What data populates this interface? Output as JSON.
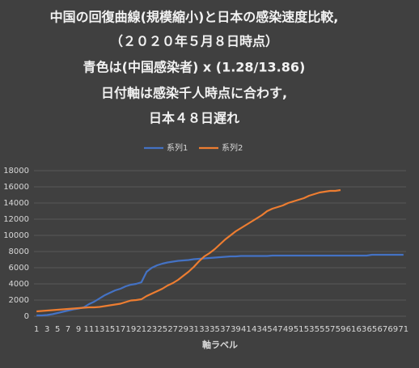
{
  "chart_data": {
    "type": "line",
    "title": [
      "中国の回復曲線(規模縮小)と日本の感染速度比較,",
      "（２０２０年５月８日時点）",
      "青色は(中国感染者) x (1.28/13.86)",
      "日付軸は感染千人時点に合わす,",
      "日本４８日遅れ"
    ],
    "xlabel": "軸ラベル",
    "categories": [
      1,
      null,
      3,
      null,
      5,
      null,
      7,
      null,
      9,
      null,
      11,
      null,
      13,
      null,
      15,
      null,
      17,
      null,
      19,
      null,
      21,
      null,
      23,
      null,
      25,
      null,
      27,
      null,
      29,
      null,
      31,
      null,
      33,
      null,
      35,
      null,
      37,
      null,
      39,
      null,
      41,
      null,
      43,
      null,
      45,
      null,
      47,
      null,
      49,
      null,
      51,
      null,
      53,
      null,
      55,
      null,
      57,
      null,
      59,
      null,
      61,
      null,
      63,
      null,
      65,
      null,
      67,
      null,
      69,
      null,
      71
    ],
    "series": [
      {
        "name": "系列1",
        "color": "#4472c4",
        "values": [
          100,
          100,
          150,
          250,
          400,
          550,
          700,
          850,
          950,
          1100,
          1500,
          1800,
          2200,
          2600,
          2900,
          3200,
          3400,
          3700,
          3900,
          4000,
          4200,
          5500,
          6000,
          6300,
          6500,
          6650,
          6750,
          6850,
          6900,
          6950,
          7050,
          7100,
          7150,
          7200,
          7250,
          7300,
          7350,
          7400,
          7400,
          7450,
          7450,
          7450,
          7450,
          7450,
          7450,
          7500,
          7500,
          7500,
          7500,
          7500,
          7500,
          7500,
          7500,
          7500,
          7500,
          7500,
          7500,
          7500,
          7500,
          7500,
          7500,
          7500,
          7500,
          7500,
          7600,
          7600,
          7600,
          7600,
          7600,
          7600,
          7600
        ]
      },
      {
        "name": "系列2",
        "color": "#ed7d31",
        "values": [
          600,
          650,
          700,
          750,
          800,
          850,
          900,
          950,
          1000,
          1050,
          1100,
          1100,
          1150,
          1250,
          1350,
          1450,
          1550,
          1750,
          1950,
          2000,
          2100,
          2500,
          2800,
          3100,
          3400,
          3800,
          4100,
          4500,
          5000,
          5500,
          6100,
          6800,
          7400,
          7800,
          8300,
          8900,
          9500,
          10000,
          10500,
          10900,
          11300,
          11700,
          12100,
          12500,
          13000,
          13300,
          13500,
          13700,
          14000,
          14200,
          14400,
          14600,
          14900,
          15100,
          15300,
          15400,
          15500,
          15500,
          15600,
          null,
          null,
          null,
          null,
          null,
          null,
          null,
          null,
          null,
          null,
          null,
          null
        ]
      }
    ],
    "ylim": [
      0,
      18000
    ],
    "yticks": [
      0,
      2000,
      4000,
      6000,
      8000,
      10000,
      12000,
      14000,
      16000,
      18000
    ],
    "grid": true,
    "legend": "top"
  }
}
